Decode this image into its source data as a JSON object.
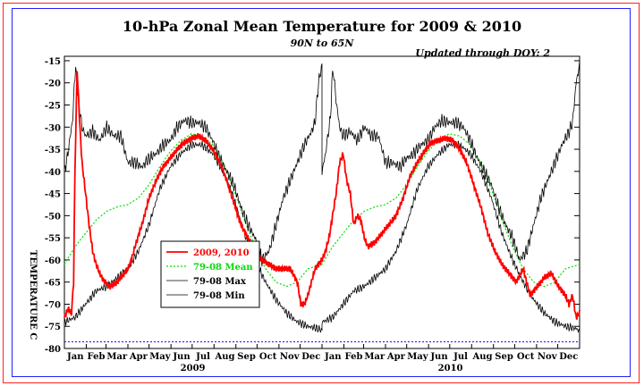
{
  "chart_data": {
    "type": "line",
    "title": "10-hPa Zonal Mean Temperature for 2009 & 2010",
    "subtitle": "90N to 65N",
    "update_note": "Updated through DOY:   2",
    "ylabel": "TEMPERATURE C",
    "ylim": [
      -80,
      -14
    ],
    "yticks": [
      "-15",
      "-20",
      "-25",
      "-30",
      "-35",
      "-40",
      "-45",
      "-50",
      "-55",
      "-60",
      "-65",
      "-70",
      "-75",
      "-80"
    ],
    "months": [
      "Jan",
      "Feb",
      "Mar",
      "Apr",
      "May",
      "Jun",
      "Jul",
      "Aug",
      "Sep",
      "Oct",
      "Nov",
      "Dec",
      "Jan",
      "Feb",
      "Mar",
      "Apr",
      "May",
      "Jun",
      "Jul",
      "Aug",
      "Sep",
      "Oct",
      "Nov",
      "Dec"
    ],
    "years": [
      "2009",
      "2010"
    ],
    "xlim_days": [
      0,
      730
    ],
    "reference_line": -78.5,
    "colors": {
      "obs": "#ff0000",
      "mean": "#00dd00",
      "max": "#000000",
      "min": "#000000",
      "reference": "#2222ff"
    },
    "series": [
      {
        "name": "2009, 2010",
        "key": "obs",
        "x": [
          0,
          5,
          10,
          13,
          15,
          18,
          22,
          25,
          30,
          35,
          40,
          45,
          50,
          55,
          60,
          65,
          70,
          75,
          80,
          85,
          90,
          95,
          100,
          110,
          120,
          130,
          140,
          150,
          160,
          170,
          180,
          190,
          200,
          210,
          220,
          230,
          240,
          250,
          260,
          270,
          280,
          290,
          300,
          310,
          320,
          330,
          335,
          340,
          345,
          350,
          355,
          360,
          365,
          370,
          375,
          380,
          385,
          390,
          395,
          400,
          405,
          410,
          415,
          420,
          425,
          430,
          440,
          450,
          460,
          470,
          480,
          490,
          500,
          510,
          520,
          530,
          540,
          550,
          560,
          570,
          580,
          590,
          600,
          610,
          620,
          630,
          640,
          650,
          660,
          670,
          680,
          690,
          700,
          710,
          715,
          720,
          725,
          730
        ],
        "y": [
          -73,
          -71,
          -72,
          -65,
          -40,
          -17,
          -30,
          -38,
          -45,
          -52,
          -58,
          -61,
          -63,
          -64.5,
          -65.5,
          -66,
          -65.5,
          -65,
          -64,
          -63,
          -62,
          -60,
          -57,
          -52,
          -46,
          -42,
          -39,
          -37,
          -35,
          -33.5,
          -32.5,
          -32,
          -33,
          -35,
          -38,
          -42,
          -47,
          -52,
          -55,
          -58,
          -60,
          -61,
          -62,
          -62,
          -62,
          -65,
          -70,
          -70,
          -68,
          -65,
          -62,
          -61,
          -60,
          -58,
          -55,
          -50,
          -45,
          -38,
          -36,
          -42,
          -45,
          -52,
          -50,
          -51,
          -55,
          -57,
          -56,
          -54,
          -52,
          -50,
          -46,
          -41,
          -38,
          -35.5,
          -33.5,
          -33,
          -32.5,
          -33,
          -35,
          -38,
          -43,
          -48,
          -54,
          -58,
          -61,
          -63,
          -65,
          -62,
          -68,
          -66,
          -64,
          -63,
          -66,
          -68,
          -70,
          -68,
          -73,
          -72
        ]
      },
      {
        "name": "79-08 Mean",
        "key": "mean",
        "x": [
          0,
          15,
          30,
          45,
          60,
          75,
          90,
          105,
          120,
          135,
          150,
          165,
          180,
          195,
          210,
          225,
          240,
          255,
          270,
          285,
          300,
          315,
          330,
          345,
          365
        ],
        "y": [
          -61,
          -57,
          -54,
          -51,
          -49,
          -48,
          -47.5,
          -46,
          -43,
          -39,
          -35.5,
          -33,
          -31.5,
          -32,
          -34,
          -38,
          -44,
          -51,
          -57,
          -62,
          -65,
          -66,
          -65,
          -62,
          -61
        ]
      },
      {
        "name": "79-08 Max",
        "key": "max",
        "x": [
          0,
          5,
          10,
          12,
          14,
          16,
          20,
          25,
          30,
          40,
          50,
          60,
          70,
          80,
          90,
          100,
          110,
          120,
          130,
          140,
          150,
          160,
          170,
          180,
          190,
          200,
          210,
          220,
          230,
          240,
          250,
          260,
          270,
          280,
          290,
          300,
          310,
          320,
          330,
          340,
          350,
          355,
          360,
          365
        ],
        "y": [
          -40,
          -36,
          -30,
          -28,
          -20,
          -17,
          -24,
          -30,
          -32,
          -31,
          -33,
          -30,
          -32,
          -32,
          -38,
          -38,
          -39,
          -37,
          -36,
          -34,
          -33,
          -30,
          -28.5,
          -29,
          -29,
          -30,
          -33,
          -37,
          -40,
          -43,
          -48,
          -52,
          -55,
          -60,
          -58,
          -52,
          -46,
          -42,
          -38,
          -34,
          -31,
          -29,
          -20,
          -16
        ]
      },
      {
        "name": "79-08 Min",
        "key": "min",
        "x": [
          0,
          15,
          30,
          45,
          60,
          75,
          90,
          105,
          120,
          135,
          150,
          165,
          180,
          195,
          210,
          225,
          240,
          255,
          270,
          285,
          300,
          315,
          330,
          345,
          360,
          365
        ],
        "y": [
          -74,
          -73,
          -70,
          -67,
          -66,
          -64,
          -62,
          -58,
          -52,
          -44,
          -39,
          -36,
          -34,
          -34,
          -36,
          -40,
          -46,
          -54,
          -60,
          -65,
          -69,
          -72,
          -74,
          -75,
          -75.5,
          -76
        ]
      }
    ]
  }
}
